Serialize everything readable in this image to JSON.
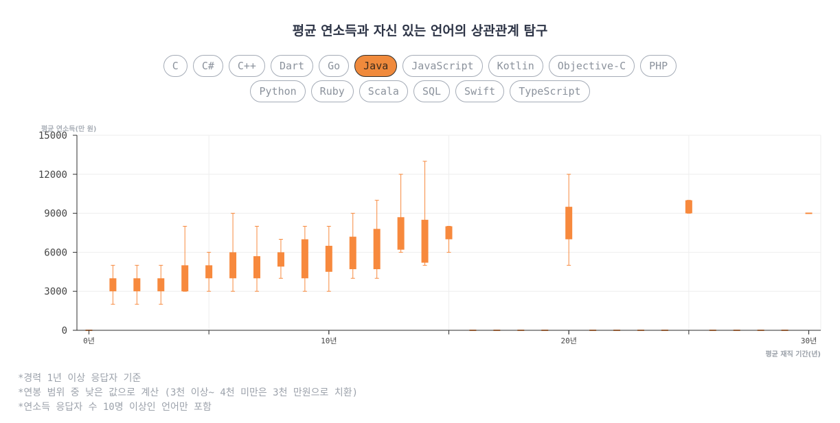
{
  "title": "평균 연소득과 자신 있는 언어의 상관관계 탐구",
  "languages_row1": [
    "C",
    "C#",
    "C++",
    "Dart",
    "Go",
    "Java",
    "JavaScript",
    "Kotlin",
    "Objective-C",
    "PHP"
  ],
  "languages_row2": [
    "Python",
    "Ruby",
    "Scala",
    "SQL",
    "Swift",
    "TypeScript"
  ],
  "selected_language": "Java",
  "notes": [
    "*경력 1년 이상 응답자 기준",
    "*연봉 범위 중 낮은 값으로 계산 (3천 이상~ 4천 미만은 3천 만원으로 치환)",
    "*연소득 응답자 수 10명 이상인 언어만 포함"
  ],
  "colors": {
    "accent": "#f7893d",
    "axis": "#2d2d2d",
    "grid": "#eeeeee"
  },
  "chart_data": {
    "type": "candlestick",
    "ylabel": "평균 연소득(만 원)",
    "xlabel": "평균 재직 기간(년)",
    "ylim": [
      0,
      15000
    ],
    "yticks": [
      0,
      3000,
      6000,
      9000,
      12000,
      15000
    ],
    "xlim": [
      -0.5,
      30.5
    ],
    "xticks": [
      0,
      10,
      20,
      30
    ],
    "xtick_labels": [
      "0년",
      "10년",
      "20년",
      "30년"
    ],
    "grid": true,
    "series": [
      {
        "values": [
          {
            "x": 0,
            "low": 0,
            "q1": 0,
            "q3": 0,
            "high": 0
          },
          {
            "x": 1,
            "low": 2000,
            "q1": 3000,
            "q3": 4000,
            "high": 5000
          },
          {
            "x": 2,
            "low": 2000,
            "q1": 3000,
            "q3": 4000,
            "high": 5000
          },
          {
            "x": 3,
            "low": 2000,
            "q1": 3000,
            "q3": 4000,
            "high": 5000
          },
          {
            "x": 4,
            "low": 3000,
            "q1": 3000,
            "q3": 5000,
            "high": 8000
          },
          {
            "x": 5,
            "low": 3000,
            "q1": 4000,
            "q3": 5000,
            "high": 6000
          },
          {
            "x": 6,
            "low": 3000,
            "q1": 4000,
            "q3": 6000,
            "high": 9000
          },
          {
            "x": 7,
            "low": 3000,
            "q1": 4000,
            "q3": 5700,
            "high": 8000
          },
          {
            "x": 8,
            "low": 4000,
            "q1": 4900,
            "q3": 6000,
            "high": 7000
          },
          {
            "x": 9,
            "low": 3000,
            "q1": 4000,
            "q3": 7000,
            "high": 8000
          },
          {
            "x": 10,
            "low": 3000,
            "q1": 4500,
            "q3": 6500,
            "high": 8000
          },
          {
            "x": 11,
            "low": 4000,
            "q1": 4700,
            "q3": 7200,
            "high": 9000
          },
          {
            "x": 12,
            "low": 4000,
            "q1": 4700,
            "q3": 7800,
            "high": 10000
          },
          {
            "x": 13,
            "low": 6000,
            "q1": 6200,
            "q3": 8700,
            "high": 12000
          },
          {
            "x": 14,
            "low": 5000,
            "q1": 5200,
            "q3": 8500,
            "high": 13000
          },
          {
            "x": 15,
            "low": 6000,
            "q1": 7000,
            "q3": 8000,
            "high": 8000
          },
          {
            "x": 16,
            "low": 0,
            "q1": 0,
            "q3": 0,
            "high": 0
          },
          {
            "x": 17,
            "low": 0,
            "q1": 0,
            "q3": 0,
            "high": 0
          },
          {
            "x": 18,
            "low": 0,
            "q1": 0,
            "q3": 0,
            "high": 0
          },
          {
            "x": 19,
            "low": 0,
            "q1": 0,
            "q3": 0,
            "high": 0
          },
          {
            "x": 20,
            "low": 5000,
            "q1": 7000,
            "q3": 9500,
            "high": 12000
          },
          {
            "x": 21,
            "low": 0,
            "q1": 0,
            "q3": 0,
            "high": 0
          },
          {
            "x": 22,
            "low": 0,
            "q1": 0,
            "q3": 0,
            "high": 0
          },
          {
            "x": 23,
            "low": 0,
            "q1": 0,
            "q3": 0,
            "high": 0
          },
          {
            "x": 24,
            "low": 0,
            "q1": 0,
            "q3": 0,
            "high": 0
          },
          {
            "x": 25,
            "low": 9000,
            "q1": 9000,
            "q3": 10000,
            "high": 10000
          },
          {
            "x": 26,
            "low": 0,
            "q1": 0,
            "q3": 0,
            "high": 0
          },
          {
            "x": 27,
            "low": 0,
            "q1": 0,
            "q3": 0,
            "high": 0
          },
          {
            "x": 28,
            "low": 0,
            "q1": 0,
            "q3": 0,
            "high": 0
          },
          {
            "x": 29,
            "low": 0,
            "q1": 0,
            "q3": 0,
            "high": 0
          },
          {
            "x": 30,
            "low": 9000,
            "q1": 9000,
            "q3": 9000,
            "high": 9000
          }
        ]
      }
    ]
  }
}
